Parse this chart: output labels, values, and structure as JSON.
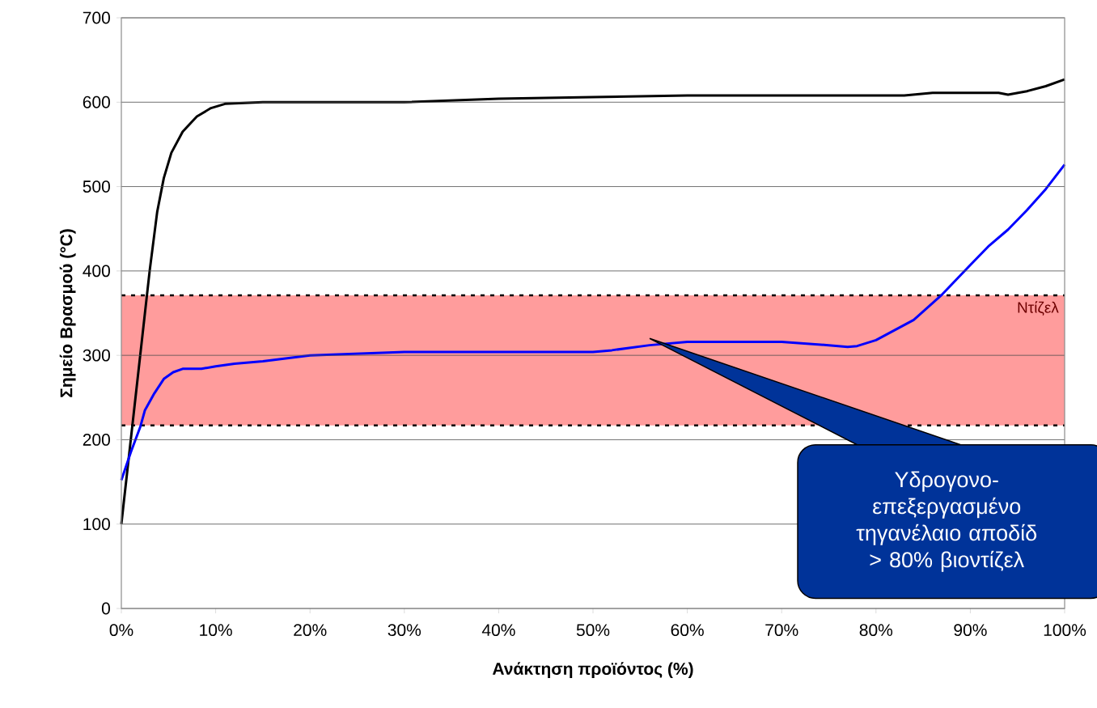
{
  "chart_data": {
    "type": "line",
    "xlabel": "Ανάκτηση προϊόντος (%)",
    "ylabel": "Σημείο Βρασμού (°C)",
    "xlim": [
      0,
      100
    ],
    "ylim": [
      0,
      700
    ],
    "xticks": [
      {
        "value": 0,
        "label": "0%"
      },
      {
        "value": 10,
        "label": "10%"
      },
      {
        "value": 20,
        "label": "20%"
      },
      {
        "value": 30,
        "label": "30%"
      },
      {
        "value": 40,
        "label": "40%"
      },
      {
        "value": 50,
        "label": "50%"
      },
      {
        "value": 60,
        "label": "60%"
      },
      {
        "value": 70,
        "label": "70%"
      },
      {
        "value": 80,
        "label": "80%"
      },
      {
        "value": 90,
        "label": "90%"
      },
      {
        "value": 100,
        "label": "100%"
      }
    ],
    "yticks": [
      0,
      100,
      200,
      300,
      400,
      500,
      600,
      700
    ],
    "grid": "y",
    "marker": "none",
    "line_style": "solid",
    "series": [
      {
        "color": "#000000",
        "x": [
          0,
          1,
          2,
          3,
          3.8,
          4.5,
          5.3,
          6.5,
          8,
          9.5,
          11,
          15,
          30,
          40,
          50,
          60,
          70,
          80,
          83,
          86,
          93,
          94,
          96,
          98,
          100
        ],
        "values": [
          100,
          200,
          300,
          400,
          470,
          510,
          540,
          565,
          583,
          593,
          598,
          600,
          600,
          604,
          606,
          608,
          608,
          608,
          608,
          611,
          611,
          609,
          613,
          619,
          627
        ]
      },
      {
        "color": "#0000ff",
        "x": [
          0,
          1,
          2,
          2.5,
          3.5,
          4.5,
          5.5,
          6.5,
          8.5,
          10,
          12,
          15,
          20,
          30,
          50,
          52,
          56,
          60,
          70,
          75,
          77,
          78,
          80,
          82,
          84,
          87,
          90,
          92,
          94,
          96,
          98,
          100
        ],
        "values": [
          152,
          185,
          215,
          235,
          255,
          272,
          280,
          284,
          284,
          287,
          290,
          293,
          300,
          304,
          304,
          306,
          312,
          316,
          316,
          312,
          310,
          311,
          318,
          330,
          342,
          372,
          407,
          430,
          449,
          472,
          497,
          526
        ]
      }
    ],
    "bands": [
      {
        "axis": "y",
        "from": 217,
        "to": 371,
        "label": "Ντίζελ",
        "color": "#ff9c9c"
      }
    ],
    "ref_lines": [
      {
        "axis": "y",
        "value": 217,
        "color": "#000000",
        "line_style": "dotted"
      },
      {
        "axis": "y",
        "value": 371,
        "color": "#000000",
        "line_style": "dotted"
      }
    ],
    "annotations": [
      "Υδρογονο- επεξεργασμένο τηγανέλαιο αποδίδ > 80% βιοντίζελ"
    ]
  }
}
